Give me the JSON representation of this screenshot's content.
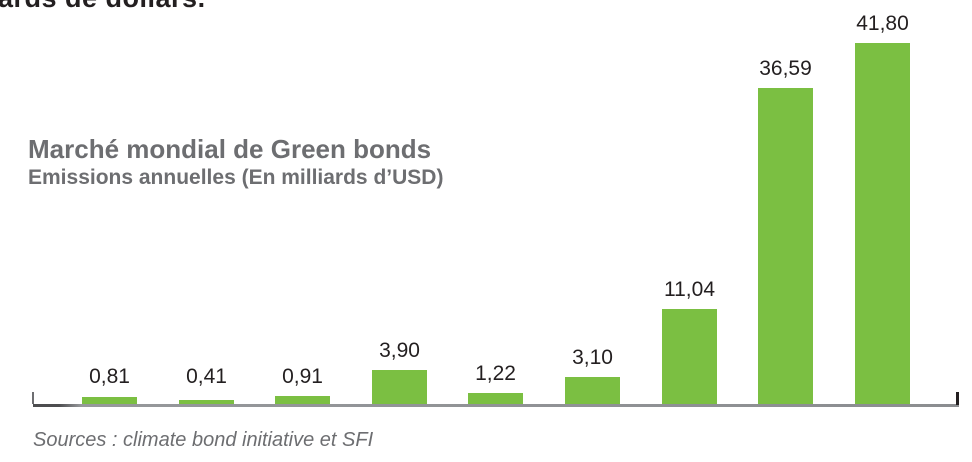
{
  "heading_fragment": {
    "text": "ards de dollars."
  },
  "chart_data": {
    "type": "bar",
    "title": "Marché mondial de Green bonds",
    "subtitle": "Emissions annuelles (En milliards d’USD)",
    "source": "Sources : climate bond initiative et SFI",
    "values": [
      0.81,
      0.41,
      0.91,
      3.9,
      1.22,
      3.1,
      11.04,
      36.59,
      41.8
    ],
    "value_labels": [
      "0,81",
      "0,41",
      "0,91",
      "3,90",
      "1,22",
      "3,10",
      "11,04",
      "36,59",
      "41,80"
    ],
    "categories_visible": false,
    "ylim": [
      0,
      41.8
    ],
    "grid": false,
    "legend": false,
    "bar_color": "#7bbf42",
    "value_label_color": "#231f20"
  },
  "colors": {
    "bar_green": "#7bbf42",
    "text_gray": "#6d6e71",
    "label_dark": "#231f20",
    "axis_gray": "#8b8d90",
    "axis_dark": "#4d4d4f",
    "background": "#ffffff"
  }
}
